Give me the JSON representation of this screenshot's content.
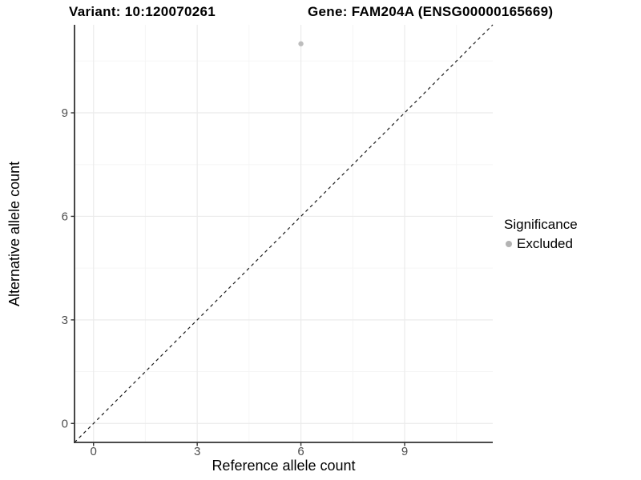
{
  "chart_data": {
    "type": "scatter",
    "title_left": "Variant: 10:120070261",
    "title_right": "Gene: FAM204A (ENSG00000165669)",
    "xlabel": "Reference allele count",
    "ylabel": "Alternative allele count",
    "xlim": [
      -0.55,
      11.55
    ],
    "ylim": [
      -0.55,
      11.55
    ],
    "x_ticks": [
      0,
      3,
      6,
      9
    ],
    "y_ticks": [
      0,
      3,
      6,
      9
    ],
    "x_minor": [
      1.5,
      4.5,
      7.5,
      10.5
    ],
    "y_minor": [
      1.5,
      4.5,
      7.5,
      10.5
    ],
    "grid": true,
    "legend_position": "right",
    "reference_line": {
      "intercept": 0,
      "slope": 1,
      "style": "dashed",
      "color": "#1a1a1a"
    },
    "series": [
      {
        "name": "Excluded",
        "color": "#bdbdbd",
        "points": [
          {
            "x": 6,
            "y": 11
          }
        ]
      }
    ]
  },
  "legend": {
    "title": "Significance",
    "items": [
      {
        "label": "Excluded",
        "color": "#b3b3b3"
      }
    ]
  },
  "colors": {
    "background": "#ffffff",
    "major_grid": "#ebebeb",
    "minor_grid": "#f5f5f5",
    "axis_line": "#333333",
    "tick_label": "#4d4d4d"
  }
}
